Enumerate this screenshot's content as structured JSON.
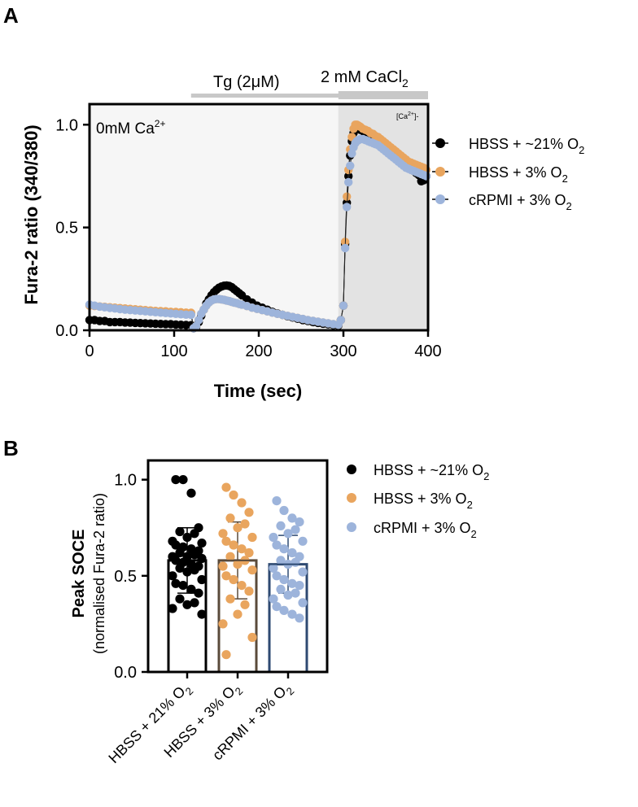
{
  "colors": {
    "black": "#000000",
    "orange": "#E9A55E",
    "blue": "#9DB4DB",
    "bar_brown": "#5A4A3A",
    "bar_blue": "#2E4A72",
    "shade_light": "#F6F6F6",
    "shade_dark": "#E3E3E3",
    "timeline_bar": "#C8C8C8"
  },
  "panels": {
    "a_label": "A",
    "b_label": "B"
  },
  "chart_data": [
    {
      "type": "line",
      "title": "",
      "xlabel": "Time (sec)",
      "ylabel": "Fura-2 ratio (340/380)",
      "xlim": [
        0,
        400
      ],
      "ylim": [
        0,
        1.1
      ],
      "xticks": [
        0,
        100,
        200,
        300,
        400
      ],
      "yticks": [
        0.0,
        0.5,
        1.0
      ],
      "xtick_labels": [
        "0",
        "100",
        "200",
        "300",
        "400"
      ],
      "ytick_labels": [
        "0.0",
        "0.5",
        "1.0"
      ],
      "annotations": {
        "tg_label": "Tg (2μM)",
        "ca_label_main": "2 mM CaCl",
        "ca_label_sub": "2",
        "zero_ca_main": "0mM Ca",
        "zero_ca_sup": "2+",
        "ca_small_main": "[Ca",
        "ca_small_sup": "2+",
        "ca_small_end": "]-"
      },
      "tg_interval": [
        120,
        400
      ],
      "ca_interval": [
        294,
        400
      ],
      "legend": [
        {
          "name_main": "HBSS + ~21% O",
          "name_sub": "2",
          "color": "#000000"
        },
        {
          "name_main": "HBSS + 3% O",
          "name_sub": "2",
          "color": "#E9A55E"
        },
        {
          "name_main": "cRPMI + 3% O",
          "name_sub": "2",
          "color": "#9DB4DB"
        }
      ],
      "x": [
        0,
        6,
        12,
        18,
        24,
        30,
        36,
        42,
        48,
        54,
        60,
        66,
        72,
        78,
        84,
        90,
        96,
        102,
        108,
        114,
        120,
        123,
        126,
        129,
        132,
        135,
        138,
        141,
        144,
        147,
        150,
        153,
        156,
        159,
        162,
        165,
        168,
        171,
        174,
        177,
        180,
        186,
        192,
        198,
        204,
        210,
        216,
        222,
        228,
        234,
        240,
        246,
        252,
        258,
        264,
        270,
        276,
        282,
        288,
        294,
        297,
        300,
        302,
        304,
        306,
        308,
        310,
        312,
        314,
        316,
        318,
        320,
        323,
        326,
        329,
        332,
        335,
        338,
        341,
        344,
        347,
        350,
        353,
        356,
        359,
        362,
        365,
        368,
        371,
        374,
        377,
        380,
        383,
        386,
        389,
        392,
        395,
        398
      ],
      "series": [
        {
          "name": "HBSS + ~21% O2",
          "values": [
            0.05,
            0.05,
            0.045,
            0.045,
            0.04,
            0.04,
            0.04,
            0.038,
            0.037,
            0.036,
            0.035,
            0.034,
            0.033,
            0.032,
            0.031,
            0.03,
            0.03,
            0.028,
            0.027,
            0.026,
            0.025,
            0.01,
            0.015,
            0.04,
            0.07,
            0.1,
            0.13,
            0.15,
            0.17,
            0.185,
            0.197,
            0.207,
            0.213,
            0.217,
            0.218,
            0.216,
            0.21,
            0.2,
            0.19,
            0.18,
            0.17,
            0.15,
            0.135,
            0.12,
            0.11,
            0.1,
            0.09,
            0.082,
            0.075,
            0.068,
            0.062,
            0.056,
            0.05,
            0.045,
            0.04,
            0.036,
            0.032,
            0.029,
            0.026,
            0.023,
            0.05,
            0.12,
            0.42,
            0.62,
            0.75,
            0.85,
            0.92,
            0.96,
            0.98,
            0.99,
            0.985,
            0.975,
            0.97,
            0.96,
            0.95,
            0.94,
            0.935,
            0.925,
            0.915,
            0.905,
            0.895,
            0.885,
            0.875,
            0.865,
            0.855,
            0.845,
            0.835,
            0.825,
            0.815,
            0.8,
            0.79,
            0.785,
            0.775,
            0.765,
            0.755,
            0.725,
            0.73,
            0.75
          ]
        },
        {
          "name": "HBSS + 3% O2",
          "values": [
            0.12,
            0.118,
            0.116,
            0.114,
            0.112,
            0.11,
            0.108,
            0.106,
            0.104,
            0.102,
            0.1,
            0.098,
            0.096,
            0.094,
            0.093,
            0.092,
            0.09,
            0.089,
            0.088,
            0.086,
            0.085,
            0.01,
            0.02,
            0.05,
            0.08,
            0.1,
            0.12,
            0.135,
            0.145,
            0.15,
            0.152,
            0.152,
            0.15,
            0.148,
            0.145,
            0.142,
            0.138,
            0.135,
            0.132,
            0.128,
            0.125,
            0.118,
            0.11,
            0.104,
            0.098,
            0.092,
            0.086,
            0.08,
            0.075,
            0.07,
            0.065,
            0.06,
            0.055,
            0.05,
            0.046,
            0.042,
            0.038,
            0.034,
            0.03,
            0.027,
            0.05,
            0.12,
            0.43,
            0.65,
            0.78,
            0.88,
            0.94,
            0.98,
            1.0,
            1.0,
            0.995,
            0.99,
            0.98,
            0.975,
            0.97,
            0.96,
            0.955,
            0.945,
            0.94,
            0.93,
            0.92,
            0.91,
            0.9,
            0.89,
            0.88,
            0.87,
            0.86,
            0.85,
            0.84,
            0.83,
            0.82,
            0.815,
            0.81,
            0.805,
            0.8,
            0.795,
            0.79,
            0.78
          ]
        },
        {
          "name": "cRPMI + 3% O2",
          "values": [
            0.125,
            0.12,
            0.115,
            0.112,
            0.109,
            0.106,
            0.103,
            0.1,
            0.098,
            0.096,
            0.094,
            0.092,
            0.09,
            0.088,
            0.086,
            0.084,
            0.082,
            0.08,
            0.078,
            0.076,
            0.075,
            0.01,
            0.02,
            0.05,
            0.08,
            0.1,
            0.12,
            0.135,
            0.145,
            0.15,
            0.152,
            0.152,
            0.15,
            0.148,
            0.145,
            0.142,
            0.138,
            0.135,
            0.132,
            0.128,
            0.125,
            0.118,
            0.11,
            0.104,
            0.098,
            0.092,
            0.086,
            0.08,
            0.075,
            0.07,
            0.065,
            0.06,
            0.055,
            0.05,
            0.046,
            0.042,
            0.038,
            0.034,
            0.03,
            0.027,
            0.05,
            0.12,
            0.4,
            0.6,
            0.72,
            0.8,
            0.86,
            0.89,
            0.91,
            0.92,
            0.925,
            0.93,
            0.93,
            0.925,
            0.92,
            0.915,
            0.91,
            0.905,
            0.9,
            0.89,
            0.88,
            0.87,
            0.86,
            0.85,
            0.84,
            0.83,
            0.82,
            0.81,
            0.8,
            0.79,
            0.785,
            0.78,
            0.775,
            0.77,
            0.765,
            0.76,
            0.755,
            0.75
          ]
        }
      ]
    },
    {
      "type": "bar",
      "title": "",
      "xlabel": "",
      "ylabel": "Peak SOCE",
      "ylabel2": "(normalised Fura-2 ratio)",
      "ylim": [
        0,
        1.1
      ],
      "yticks": [
        0.0,
        0.5,
        1.0
      ],
      "ytick_labels": [
        "0.0",
        "0.5",
        "1.0"
      ],
      "categories": [
        {
          "main": "HBSS + 21% O",
          "sub": "2"
        },
        {
          "main": "HBSS + 3% O",
          "sub": "2"
        },
        {
          "main": "cRPMI + 3% O",
          "sub": "2"
        }
      ],
      "legend": [
        {
          "name_main": "HBSS + ~21% O",
          "name_sub": "2",
          "color": "#000000"
        },
        {
          "name_main": "HBSS + 3% O",
          "name_sub": "2",
          "color": "#E9A55E"
        },
        {
          "name_main": "cRPMI + 3% O",
          "name_sub": "2",
          "color": "#9DB4DB"
        }
      ],
      "series": [
        {
          "name": "HBSS + ~21% O2",
          "mean": 0.58,
          "sd": 0.17,
          "points": [
            1.0,
            1.0,
            0.93,
            0.75,
            0.73,
            0.72,
            0.7,
            0.68,
            0.67,
            0.66,
            0.65,
            0.64,
            0.63,
            0.62,
            0.61,
            0.6,
            0.6,
            0.59,
            0.58,
            0.57,
            0.56,
            0.55,
            0.54,
            0.53,
            0.52,
            0.5,
            0.48,
            0.46,
            0.45,
            0.43,
            0.41,
            0.38,
            0.36,
            0.35,
            0.33,
            0.3
          ]
        },
        {
          "name": "HBSS + 3% O2",
          "mean": 0.58,
          "sd": 0.2,
          "points": [
            0.96,
            0.92,
            0.88,
            0.83,
            0.8,
            0.77,
            0.75,
            0.72,
            0.7,
            0.68,
            0.66,
            0.64,
            0.62,
            0.6,
            0.58,
            0.56,
            0.55,
            0.53,
            0.5,
            0.48,
            0.45,
            0.42,
            0.38,
            0.35,
            0.3,
            0.25,
            0.18,
            0.09
          ]
        },
        {
          "name": "cRPMI + 3% O2",
          "mean": 0.56,
          "sd": 0.15,
          "points": [
            0.89,
            0.84,
            0.8,
            0.78,
            0.76,
            0.74,
            0.72,
            0.7,
            0.68,
            0.66,
            0.64,
            0.62,
            0.6,
            0.58,
            0.57,
            0.56,
            0.54,
            0.52,
            0.5,
            0.48,
            0.46,
            0.45,
            0.43,
            0.41,
            0.4,
            0.38,
            0.36,
            0.34,
            0.32,
            0.3,
            0.28
          ]
        }
      ]
    }
  ]
}
